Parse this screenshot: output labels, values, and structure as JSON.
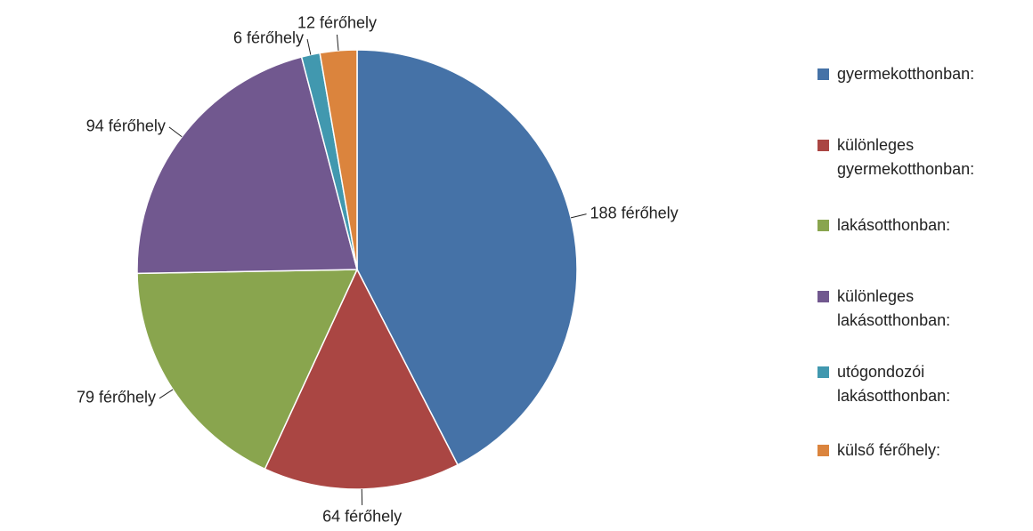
{
  "chart_data": {
    "type": "pie",
    "categories": [
      "gyermekotthonban:",
      "különleges gyermekotthonban:",
      "lakásotthonban:",
      "különleges lakásotthonban:",
      "utógondozói lakásotthonban:",
      "külső férőhely:"
    ],
    "values": [
      188,
      64,
      79,
      94,
      6,
      12
    ],
    "value_labels": [
      "188 férőhely",
      "64 férőhely",
      "79 férőhely",
      "94 férőhely",
      "6 férőhely",
      "12 férőhely"
    ],
    "colors": [
      "#4572A7",
      "#AA4643",
      "#89A54E",
      "#71588F",
      "#4198AF",
      "#DB843D"
    ],
    "legend": "right"
  }
}
